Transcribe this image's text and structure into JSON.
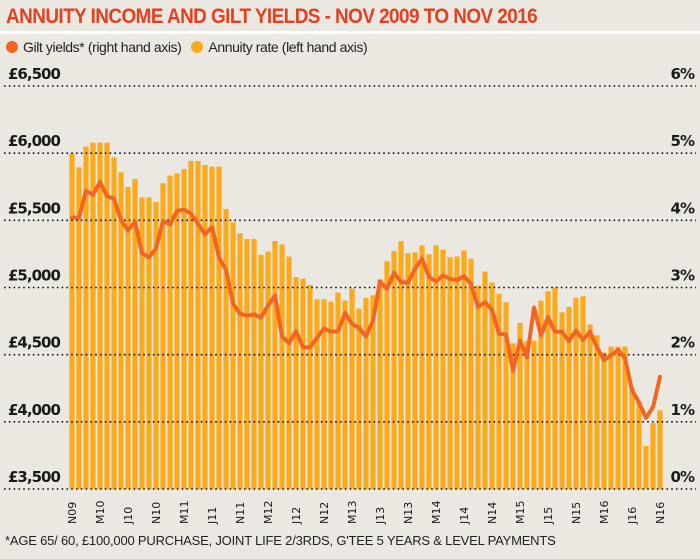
{
  "title": "ANNUITY INCOME AND GILT YIELDS - NOV 2009 TO NOV 2016",
  "legend": [
    {
      "label": "Gilt yields* (right hand axis)",
      "color": "#f26522"
    },
    {
      "label": "Annuity rate (left hand axis)",
      "color": "#fbaa1b"
    }
  ],
  "footnote": "*AGE 65/ 60, £100,000 PURCHASE, JOINT LIFE 2/3RDS, G'TEE 5 YEARS & LEVEL PAYMENTS",
  "chart_data": {
    "type": "bar+line",
    "title": "ANNUITY INCOME AND GILT YIELDS - NOV 2009 TO NOV 2016",
    "x_tick_labels": [
      "N09",
      "M10",
      "J10",
      "N10",
      "M11",
      "J11",
      "N11",
      "M12",
      "J12",
      "N12",
      "M13",
      "J13",
      "N13",
      "M14",
      "J14",
      "N14",
      "M15",
      "J15",
      "N15",
      "M16",
      "J16",
      "N16"
    ],
    "x_tick_every_months": 4,
    "x_start": "2009-11",
    "x_end": "2016-11",
    "left_axis": {
      "ylim": [
        3500,
        6500
      ],
      "ticks": [
        "£6,500",
        "£6,000",
        "£5,500",
        "£5,000",
        "£4,500",
        "£4,000",
        "£3,500"
      ],
      "tick_values": [
        6500,
        6000,
        5500,
        5000,
        4500,
        4000,
        3500
      ]
    },
    "right_axis": {
      "ylim": [
        0,
        6
      ],
      "ticks": [
        "6%",
        "5%",
        "4%",
        "3%",
        "2%",
        "1%",
        "0%"
      ],
      "tick_values": [
        6,
        5,
        4,
        3,
        2,
        1,
        0
      ]
    },
    "grid": "horizontal dotted",
    "legend_position": "top-left",
    "series": [
      {
        "name": "Annuity rate (left hand axis)",
        "type": "bar",
        "axis": "left",
        "color": "#fbaa1b",
        "values": [
          5994,
          5895,
          6048,
          6078,
          6078,
          6078,
          5969,
          5857,
          5748,
          5808,
          5671,
          5671,
          5637,
          5776,
          5833,
          5850,
          5882,
          5942,
          5942,
          5912,
          5900,
          5900,
          5585,
          5485,
          5403,
          5361,
          5361,
          5242,
          5267,
          5346,
          5321,
          5230,
          5078,
          5066,
          5019,
          4912,
          4912,
          4895,
          4962,
          4902,
          4992,
          4843,
          4922,
          4942,
          5061,
          5195,
          5272,
          5346,
          5257,
          5262,
          5314,
          5247,
          5314,
          5282,
          5226,
          5231,
          5276,
          5214,
          5015,
          5119,
          5037,
          4953,
          4890,
          4584,
          4736,
          4604,
          4604,
          4902,
          4972,
          5001,
          4815,
          4855,
          4922,
          4934,
          4724,
          4644,
          4517,
          4560,
          4560,
          4560,
          4260,
          4150,
          3820,
          3990,
          4085
        ]
      },
      {
        "name": "Gilt yields* (right hand axis)",
        "type": "line",
        "axis": "right",
        "color": "#f26522",
        "values": [
          4.04,
          4.04,
          4.44,
          4.38,
          4.57,
          4.36,
          4.32,
          4.0,
          3.85,
          3.98,
          3.51,
          3.45,
          3.58,
          3.99,
          3.94,
          4.14,
          4.16,
          4.1,
          3.95,
          3.79,
          3.9,
          3.45,
          3.26,
          2.76,
          2.61,
          2.58,
          2.6,
          2.55,
          2.73,
          2.88,
          2.27,
          2.17,
          2.35,
          2.11,
          2.11,
          2.25,
          2.39,
          2.34,
          2.35,
          2.62,
          2.46,
          2.4,
          2.27,
          2.51,
          3.09,
          2.98,
          3.22,
          3.08,
          3.07,
          3.28,
          3.43,
          3.16,
          3.09,
          3.18,
          3.13,
          3.11,
          3.17,
          3.05,
          2.71,
          2.78,
          2.67,
          2.31,
          2.3,
          1.76,
          2.21,
          1.96,
          2.7,
          2.29,
          2.56,
          2.34,
          2.34,
          2.2,
          2.36,
          2.22,
          2.34,
          2.11,
          1.92,
          1.99,
          2.07,
          1.95,
          1.47,
          1.29,
          1.06,
          1.22,
          1.67
        ]
      }
    ]
  }
}
